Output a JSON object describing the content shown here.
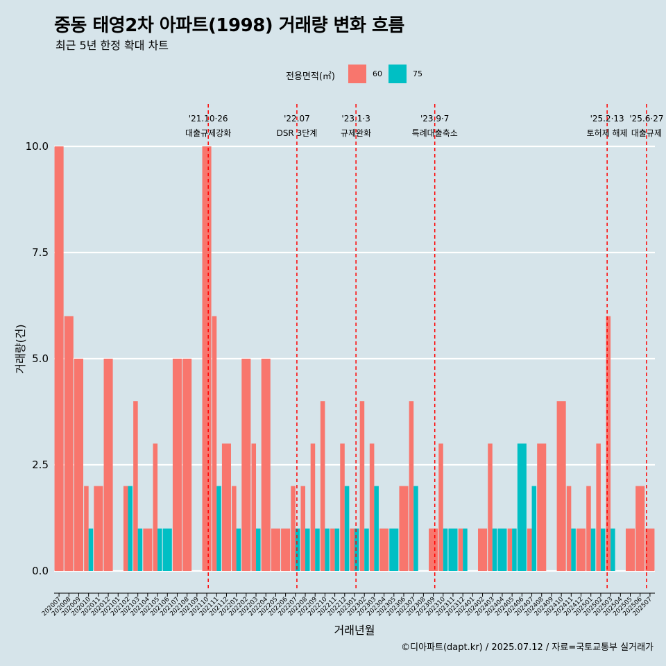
{
  "header": {
    "title": "중동 태영2차 아파트(1998) 거래량 변화 흐름",
    "subtitle": "최근 5년 한정 확대 차트"
  },
  "legend": {
    "title": "전용면적(㎡)",
    "items": [
      {
        "label": "60",
        "color": "#f8766d"
      },
      {
        "label": "75",
        "color": "#00bfc4"
      }
    ]
  },
  "caption": "©디아파트(dapt.kr) / 2025.07.12 / 자료=국토교통부 실거래가",
  "chart_data": {
    "type": "bar",
    "title": "중동 태영2차 아파트(1998) 거래량 변화 흐름",
    "subtitle": "최근 5년 한정 확대 차트",
    "xlabel": "거래년월",
    "ylabel": "거래량(건)",
    "ylim": [
      -0.4,
      10.4
    ],
    "yticks": [
      0,
      2.5,
      5,
      7.5,
      10
    ],
    "ytick_labels": [
      "0.0",
      "2.5",
      "5.0",
      "7.5",
      "10.0"
    ],
    "grid": true,
    "categories": [
      "202007",
      "202008",
      "202009",
      "202010",
      "202011",
      "202012",
      "202101",
      "202102",
      "202103",
      "202104",
      "202105",
      "202106",
      "202107",
      "202108",
      "202109",
      "202110",
      "202111",
      "202112",
      "202201",
      "202202",
      "202203",
      "202204",
      "202205",
      "202206",
      "202207",
      "202208",
      "202209",
      "202210",
      "202211",
      "202212",
      "202301",
      "202302",
      "202303",
      "202304",
      "202305",
      "202306",
      "202307",
      "202308",
      "202309",
      "202310",
      "202311",
      "202312",
      "202401",
      "202402",
      "202403",
      "202404",
      "202405",
      "202406",
      "202407",
      "202408",
      "202409",
      "202410",
      "202411",
      "202412",
      "202501",
      "202502",
      "202503",
      "202504",
      "202505",
      "202506",
      "202507"
    ],
    "series": [
      {
        "name": "60",
        "color": "#f8766d",
        "values": [
          10,
          6,
          5,
          2,
          2,
          5,
          0,
          2,
          4,
          1,
          3,
          0,
          5,
          5,
          0,
          10,
          6,
          3,
          2,
          5,
          3,
          5,
          1,
          1,
          2,
          2,
          3,
          4,
          1,
          3,
          1,
          4,
          3,
          1,
          0,
          2,
          4,
          0,
          1,
          3,
          0,
          1,
          0,
          1,
          3,
          0,
          1,
          0,
          1,
          3,
          0,
          4,
          2,
          1,
          2,
          3,
          6,
          0,
          1,
          2,
          1
        ]
      },
      {
        "name": "75",
        "color": "#00bfc4",
        "values": [
          0,
          0,
          0,
          1,
          0,
          0,
          0,
          2,
          1,
          0,
          1,
          1,
          0,
          0,
          0,
          0,
          2,
          0,
          1,
          0,
          1,
          0,
          0,
          0,
          1,
          1,
          1,
          1,
          1,
          2,
          1,
          1,
          2,
          0,
          1,
          0,
          2,
          0,
          0,
          1,
          1,
          1,
          0,
          0,
          1,
          1,
          1,
          3,
          2,
          0,
          0,
          0,
          1,
          0,
          1,
          1,
          1,
          0,
          0,
          0,
          0
        ]
      }
    ],
    "events": [
      {
        "index": 15.15,
        "date": "'21.10·26",
        "label": "대출규제강화"
      },
      {
        "index": 24.15,
        "date": "'22.07",
        "label": "DSR 3단계"
      },
      {
        "index": 30.15,
        "date": "'23.1·3",
        "label": "규제완화"
      },
      {
        "index": 38.15,
        "date": "'23.9·7",
        "label": "특례대출축소"
      },
      {
        "index": 55.65,
        "date": "'25.2·13",
        "label": "토허제 해제"
      },
      {
        "index": 59.65,
        "date": "'25.6·27",
        "label": "대출규제"
      }
    ],
    "event_line_color": "#ff0000"
  }
}
